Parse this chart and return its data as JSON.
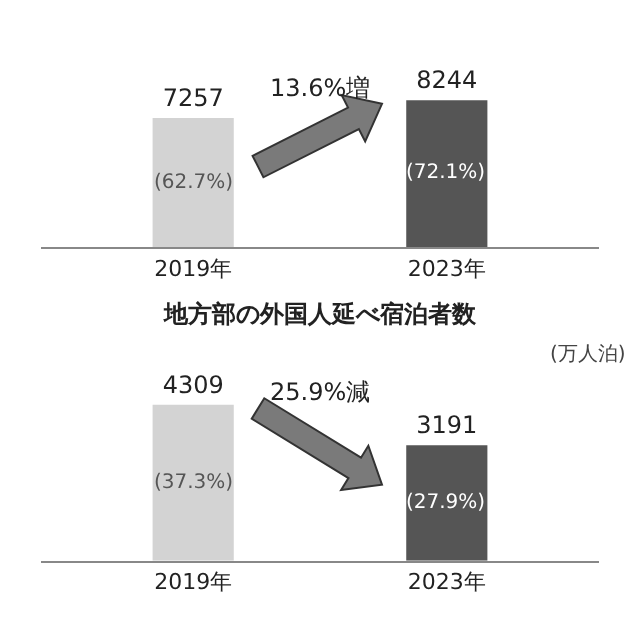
{
  "chart_data": [
    {
      "type": "bar",
      "categories": [
        "2019年",
        "2023年"
      ],
      "values": [
        7257,
        8244
      ],
      "colors": [
        "#d3d3d3",
        "#555555"
      ],
      "data_labels": true,
      "annotations": [
        "(62.7%)",
        "(72.1%)",
        "13.6%増"
      ]
    },
    {
      "type": "bar",
      "title": "地方部の外国人延べ宿泊者数",
      "categories": [
        "2019年",
        "2023年"
      ],
      "values": [
        4309,
        3191
      ],
      "colors": [
        "#d3d3d3",
        "#555555"
      ],
      "data_labels": true,
      "annotations": [
        "(37.3%)",
        "(27.9%)",
        "25.9%減",
        "(万人泊)"
      ]
    }
  ]
}
